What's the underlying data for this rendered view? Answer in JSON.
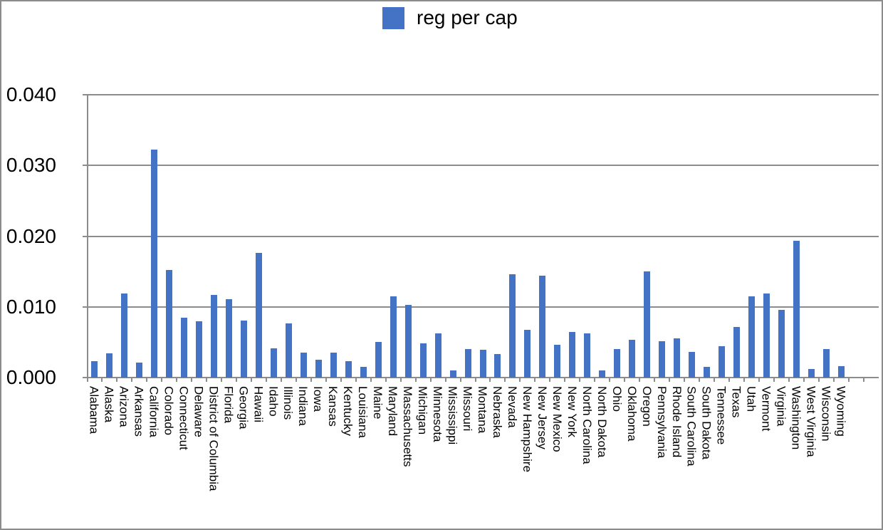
{
  "legend": {
    "label": "reg per cap",
    "swatch_color": "#4472C4"
  },
  "colors": {
    "bar": "#4472C4",
    "grid": "#8C8C8C",
    "border": "#8C8C8C",
    "text": "#000000",
    "background": "#ffffff"
  },
  "y_axis": {
    "tick_labels": [
      "0.040",
      "0.030",
      "0.020",
      "0.010",
      "0.000"
    ],
    "min": 0.0,
    "max": 0.04,
    "step": 0.01
  },
  "chart_data": {
    "type": "bar",
    "title": "reg per cap",
    "xlabel": "",
    "ylabel": "",
    "ylim": [
      0.0,
      0.04
    ],
    "grid": true,
    "legend_position": "top",
    "categories": [
      "Alabama",
      "Alaska",
      "Arizona",
      "Arkansas",
      "California",
      "Colorado",
      "Connecticut",
      "Delaware",
      "District of Columbia",
      "Florida",
      "Georgia",
      "Hawaii",
      "Idaho",
      "Illinois",
      "Indiana",
      "Iowa",
      "Kansas",
      "Kentucky",
      "Louisiana",
      "Maine",
      "Maryland",
      "Massachusetts",
      "Michigan",
      "Minnesota",
      "Mississippi",
      "Missouri",
      "Montana",
      "Nebraska",
      "Nevada",
      "New Hampshire",
      "New Jersey",
      "New Mexico",
      "New York",
      "North Carolina",
      "North Dakota",
      "Ohio",
      "Oklahoma",
      "Oregon",
      "Pennsylvania",
      "Rhode Island",
      "South Carolina",
      "South Dakota",
      "Tennessee",
      "Texas",
      "Utah",
      "Vermont",
      "Virginia",
      "Washington",
      "West Virginia",
      "Wisconsin",
      "Wyoming"
    ],
    "series": [
      {
        "name": "reg per cap",
        "values": [
          0.0023,
          0.0034,
          0.0119,
          0.0021,
          0.0322,
          0.0152,
          0.0085,
          0.008,
          0.0117,
          0.0111,
          0.0081,
          0.0176,
          0.0041,
          0.0077,
          0.0035,
          0.0025,
          0.0035,
          0.0023,
          0.0015,
          0.005,
          0.0115,
          0.0103,
          0.0048,
          0.0062,
          0.001,
          0.004,
          0.0039,
          0.0033,
          0.0146,
          0.0068,
          0.0144,
          0.0046,
          0.0064,
          0.0062,
          0.001,
          0.004,
          0.0053,
          0.015,
          0.0051,
          0.0055,
          0.0036,
          0.0015,
          0.0044,
          0.0072,
          0.0115,
          0.0119,
          0.0096,
          0.0193,
          0.0012,
          0.004,
          0.0016
        ]
      }
    ]
  }
}
